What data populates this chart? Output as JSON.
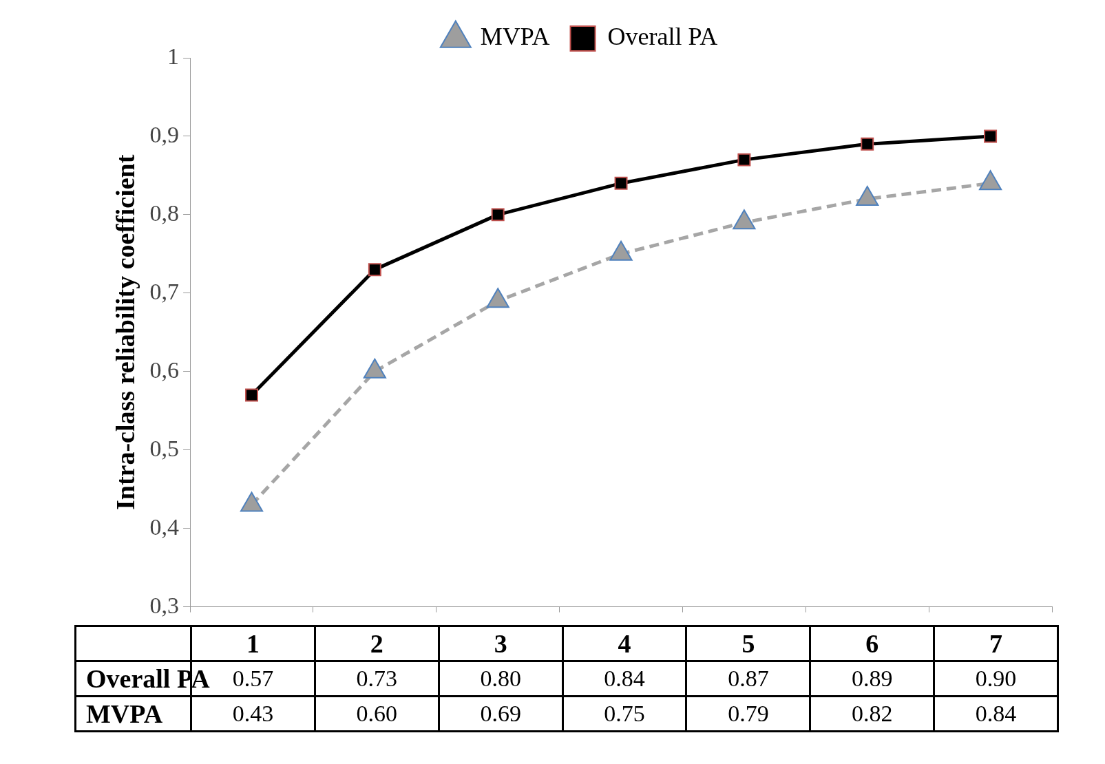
{
  "chart_data": {
    "type": "line",
    "ylabel": "Intra-class reliability coefficient",
    "categories": [
      "1",
      "2",
      "3",
      "4",
      "5",
      "6",
      "7"
    ],
    "series": [
      {
        "name": "MVPA",
        "color": "#a6a6a6",
        "marker": "triangle",
        "line_style": "dashed",
        "values": [
          0.43,
          0.6,
          0.69,
          0.75,
          0.79,
          0.82,
          0.84
        ],
        "value_labels": [
          "0.43",
          "0.60",
          "0.69",
          "0.75",
          "0.79",
          "0.82",
          "0.84"
        ]
      },
      {
        "name": "Overall PA",
        "color": "#000000",
        "marker": "square",
        "line_style": "solid",
        "values": [
          0.57,
          0.73,
          0.8,
          0.84,
          0.87,
          0.89,
          0.9
        ],
        "value_labels": [
          "0.57",
          "0.73",
          "0.80",
          "0.84",
          "0.87",
          "0.89",
          "0.90"
        ]
      }
    ],
    "ylim": [
      0.3,
      1
    ],
    "yticks": [
      {
        "value": 0.3,
        "label": "0,3"
      },
      {
        "value": 0.4,
        "label": "0,4"
      },
      {
        "value": 0.5,
        "label": "0,5"
      },
      {
        "value": 0.6,
        "label": "0,6"
      },
      {
        "value": 0.7,
        "label": "0,7"
      },
      {
        "value": 0.8,
        "label": "0,8"
      },
      {
        "value": 0.9,
        "label": "0,9"
      },
      1
    ],
    "legend": "top",
    "tick_labels": "y"
  }
}
